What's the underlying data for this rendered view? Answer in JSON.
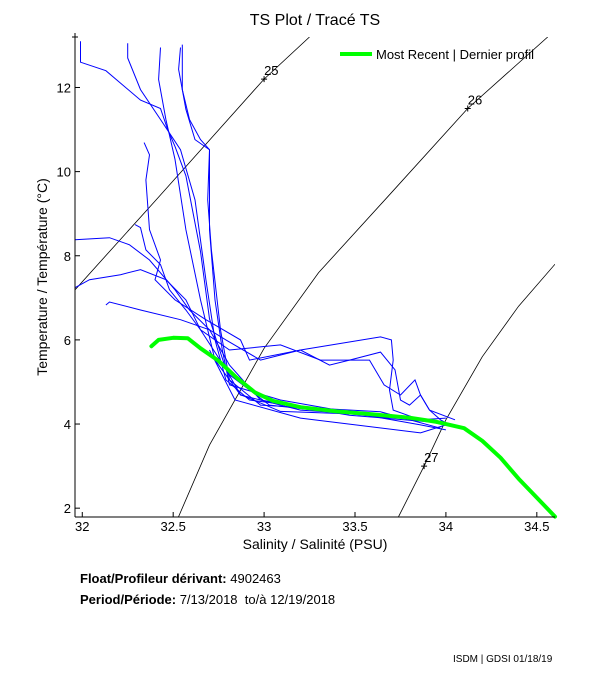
{
  "chart_data": {
    "type": "line",
    "title": "TS Plot / Tracé TS",
    "xlabel": "Salinity / Salinité (PSU)",
    "ylabel": "Temperature / Température (°C)",
    "xlim": [
      31.96,
      34.6
    ],
    "ylim": [
      1.79,
      13.2
    ],
    "xticks": [
      32,
      32.5,
      33,
      33.5,
      34,
      34.5
    ],
    "xtick_labels": [
      "32",
      "32.5",
      "33",
      "33.5",
      "34",
      "34.5"
    ],
    "yticks": [
      2,
      4,
      6,
      8,
      10,
      12
    ],
    "ytick_labels": [
      "2",
      "4",
      "6",
      "8",
      "10",
      "12"
    ],
    "grid": false,
    "legend": {
      "placement": "top-right",
      "entries": [
        "Most Recent | Dernier profil"
      ]
    },
    "colors": {
      "profiles": "#0000ff",
      "most_recent": "#00ff00",
      "density_contours": "#000000"
    },
    "density_contours": [
      {
        "label": "25",
        "label_at": [
          33.0,
          12.2
        ],
        "points": [
          [
            31.96,
            7.19
          ],
          [
            32.4,
            9.3
          ],
          [
            33.0,
            12.2
          ],
          [
            33.25,
            13.2
          ]
        ]
      },
      {
        "label": "26",
        "label_at": [
          34.12,
          11.5
        ],
        "points": [
          [
            32.53,
            1.8
          ],
          [
            32.7,
            3.5
          ],
          [
            33.0,
            5.8
          ],
          [
            33.3,
            7.6
          ],
          [
            33.7,
            9.5
          ],
          [
            34.12,
            11.5
          ],
          [
            34.56,
            13.2
          ]
        ]
      },
      {
        "label": "27",
        "label_at": [
          33.88,
          3.0
        ],
        "points": [
          [
            33.74,
            1.8
          ],
          [
            33.88,
            3.0
          ],
          [
            34.0,
            4.1
          ],
          [
            34.2,
            5.6
          ],
          [
            34.4,
            6.8
          ],
          [
            34.6,
            7.8
          ]
        ]
      }
    ],
    "most_recent": {
      "name": "Most Recent | Dernier profil",
      "points": [
        [
          32.38,
          5.85
        ],
        [
          32.42,
          6.0
        ],
        [
          32.5,
          6.05
        ],
        [
          32.58,
          6.04
        ],
        [
          32.65,
          5.8
        ],
        [
          32.75,
          5.5
        ],
        [
          32.85,
          5.1
        ],
        [
          32.95,
          4.75
        ],
        [
          33.05,
          4.55
        ],
        [
          33.2,
          4.4
        ],
        [
          33.4,
          4.3
        ],
        [
          33.6,
          4.23
        ],
        [
          33.8,
          4.15
        ],
        [
          33.95,
          4.05
        ],
        [
          34.1,
          3.9
        ],
        [
          34.2,
          3.6
        ],
        [
          34.3,
          3.2
        ],
        [
          34.4,
          2.7
        ],
        [
          34.5,
          2.25
        ],
        [
          34.6,
          1.8
        ]
      ]
    },
    "profiles": [
      [
        [
          31.99,
          13.1
        ],
        [
          31.99,
          12.6
        ],
        [
          32.13,
          12.4
        ],
        [
          32.32,
          11.7
        ],
        [
          32.43,
          11.5
        ],
        [
          32.47,
          11.0
        ],
        [
          32.51,
          10.6
        ],
        [
          32.57,
          9.9
        ],
        [
          32.65,
          8.1
        ],
        [
          32.7,
          6.5
        ],
        [
          32.79,
          5.3
        ],
        [
          32.87,
          4.7
        ],
        [
          33.09,
          4.3
        ],
        [
          33.75,
          4.2
        ],
        [
          33.97,
          4.0
        ]
      ],
      [
        [
          32.25,
          13.05
        ],
        [
          32.25,
          12.7
        ],
        [
          32.32,
          11.95
        ],
        [
          32.43,
          11.24
        ],
        [
          32.54,
          10.52
        ],
        [
          32.62,
          9.33
        ],
        [
          32.68,
          7.43
        ],
        [
          32.73,
          6.0
        ],
        [
          32.79,
          5.05
        ],
        [
          32.92,
          4.57
        ],
        [
          33.36,
          4.33
        ],
        [
          33.86,
          4.1
        ],
        [
          34.02,
          3.98
        ]
      ],
      [
        [
          32.54,
          12.95
        ],
        [
          32.53,
          12.43
        ],
        [
          32.57,
          11.48
        ],
        [
          32.62,
          10.76
        ],
        [
          32.7,
          10.52
        ],
        [
          32.69,
          9.33
        ],
        [
          32.71,
          8.14
        ],
        [
          32.76,
          6.24
        ],
        [
          32.81,
          5.05
        ],
        [
          32.98,
          4.45
        ],
        [
          33.64,
          4.29
        ],
        [
          33.97,
          3.9
        ]
      ],
      [
        [
          32.43,
          12.95
        ],
        [
          32.42,
          12.19
        ],
        [
          32.46,
          11.24
        ],
        [
          32.51,
          10.29
        ],
        [
          32.57,
          8.62
        ],
        [
          32.65,
          6.95
        ],
        [
          32.73,
          5.52
        ],
        [
          32.87,
          4.69
        ],
        [
          33.2,
          4.33
        ],
        [
          33.86,
          4.14
        ]
      ],
      [
        [
          31.96,
          8.38
        ],
        [
          32.15,
          8.43
        ],
        [
          32.26,
          8.26
        ],
        [
          32.37,
          7.9
        ],
        [
          32.51,
          7.19
        ],
        [
          32.59,
          6.71
        ],
        [
          32.7,
          6.24
        ],
        [
          32.81,
          5.4
        ],
        [
          32.98,
          4.57
        ],
        [
          33.47,
          4.21
        ],
        [
          33.91,
          4.05
        ]
      ],
      [
        [
          31.96,
          7.24
        ],
        [
          32.04,
          7.43
        ],
        [
          32.21,
          7.55
        ],
        [
          32.32,
          7.67
        ],
        [
          32.46,
          7.43
        ],
        [
          32.57,
          6.95
        ],
        [
          32.65,
          6.24
        ],
        [
          32.81,
          5.17
        ],
        [
          33.03,
          4.45
        ],
        [
          33.69,
          4.14
        ]
      ],
      [
        [
          32.13,
          6.83
        ],
        [
          32.15,
          6.9
        ],
        [
          32.32,
          6.71
        ],
        [
          32.54,
          6.48
        ],
        [
          32.7,
          6.24
        ],
        [
          32.79,
          6.0
        ],
        [
          32.98,
          5.52
        ],
        [
          33.2,
          5.76
        ],
        [
          33.64,
          6.07
        ],
        [
          33.7,
          6.0
        ],
        [
          33.71,
          5.52
        ],
        [
          33.69,
          4.81
        ],
        [
          33.71,
          4.33
        ],
        [
          33.86,
          4.1
        ],
        [
          34.0,
          4.14
        ]
      ],
      [
        [
          32.34,
          10.69
        ],
        [
          32.37,
          10.4
        ],
        [
          32.35,
          9.8
        ],
        [
          32.37,
          8.62
        ],
        [
          32.43,
          7.9
        ],
        [
          32.4,
          7.43
        ],
        [
          32.51,
          6.95
        ],
        [
          32.68,
          6.48
        ],
        [
          32.87,
          6.0
        ],
        [
          32.92,
          5.52
        ],
        [
          33.2,
          5.76
        ],
        [
          33.36,
          5.4
        ],
        [
          33.47,
          5.52
        ],
        [
          33.64,
          5.71
        ],
        [
          33.72,
          5.29
        ],
        [
          33.75,
          4.57
        ],
        [
          33.8,
          4.45
        ],
        [
          33.86,
          4.69
        ],
        [
          33.91,
          4.33
        ],
        [
          33.97,
          4.1
        ],
        [
          34.02,
          3.98
        ]
      ],
      [
        [
          32.29,
          8.74
        ],
        [
          32.32,
          8.67
        ],
        [
          32.35,
          8.14
        ],
        [
          32.43,
          7.79
        ],
        [
          32.48,
          7.19
        ],
        [
          32.57,
          6.71
        ],
        [
          32.65,
          6.24
        ],
        [
          32.81,
          5.76
        ],
        [
          33.09,
          5.88
        ],
        [
          33.31,
          5.52
        ],
        [
          33.58,
          5.52
        ],
        [
          33.66,
          4.93
        ],
        [
          33.75,
          4.69
        ],
        [
          33.83,
          5.05
        ],
        [
          33.86,
          4.69
        ],
        [
          33.91,
          4.33
        ],
        [
          34.05,
          4.1
        ]
      ],
      [
        [
          32.55,
          13.02
        ],
        [
          32.55,
          11.95
        ],
        [
          32.59,
          11.24
        ],
        [
          32.65,
          10.76
        ],
        [
          32.7,
          10.52
        ],
        [
          32.7,
          8.62
        ],
        [
          32.73,
          6.95
        ],
        [
          32.77,
          5.76
        ],
        [
          32.81,
          4.93
        ],
        [
          33.09,
          4.57
        ],
        [
          33.86,
          3.98
        ],
        [
          34.0,
          3.86
        ]
      ],
      [
        [
          32.7,
          5.76
        ],
        [
          32.84,
          4.57
        ],
        [
          33.2,
          4.14
        ],
        [
          33.86,
          3.79
        ],
        [
          34.0,
          3.98
        ]
      ]
    ]
  },
  "info": {
    "float_label": "Float/Profileur dérivant:",
    "float_id": "4902463",
    "period_label": "Period/Période:",
    "start_date": "7/13/2018",
    "to_label": "to/à",
    "end_date": "12/19/2018"
  },
  "footer": "ISDM | GDSI 01/18/19"
}
